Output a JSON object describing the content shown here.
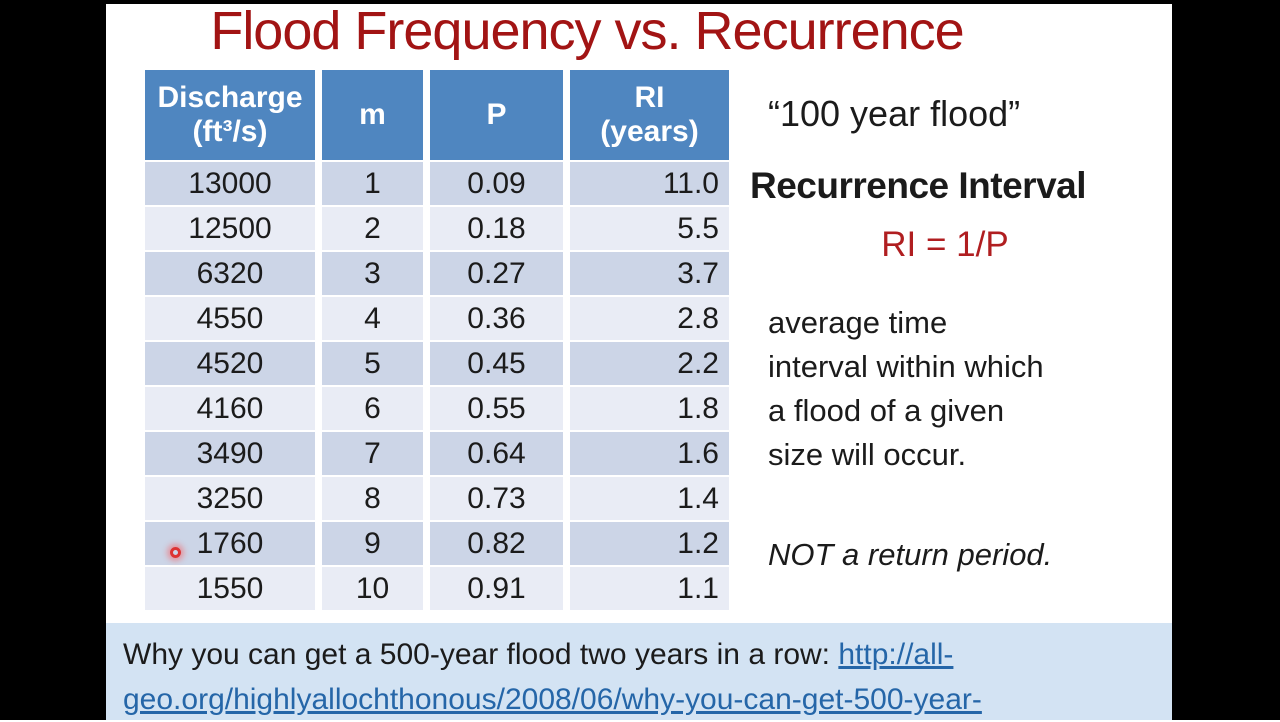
{
  "colors": {
    "bar_black": "#000000",
    "title_red": "#A21414",
    "formula_red": "#B01E20",
    "header_blue": "#4F86C0",
    "row_odd": "#CCD5E7",
    "row_even": "#E9ECF5",
    "footer_bg": "#D3E3F3",
    "link_blue": "#2566A8"
  },
  "slide": {
    "title": "Flood Frequency vs. Recurrence"
  },
  "table": {
    "headers": [
      {
        "text": "Discharge\n(ft³/s)",
        "size": "small"
      },
      {
        "text": "m",
        "size": "large"
      },
      {
        "text": "P",
        "size": "large"
      },
      {
        "text": "RI\n(years)",
        "size": "small"
      }
    ],
    "rows": [
      [
        "13000",
        "1",
        "0.09",
        "11.0"
      ],
      [
        "12500",
        "2",
        "0.18",
        "5.5"
      ],
      [
        "6320",
        "3",
        "0.27",
        "3.7"
      ],
      [
        "4550",
        "4",
        "0.36",
        "2.8"
      ],
      [
        "4520",
        "5",
        "0.45",
        "2.2"
      ],
      [
        "4160",
        "6",
        "0.55",
        "1.8"
      ],
      [
        "3490",
        "7",
        "0.64",
        "1.6"
      ],
      [
        "3250",
        "8",
        "0.73",
        "1.4"
      ],
      [
        "1760",
        "9",
        "0.82",
        "1.2"
      ],
      [
        "1550",
        "10",
        "0.91",
        "1.1"
      ]
    ]
  },
  "notes": {
    "quote": "“100 year flood”",
    "heading": "Recurrence Interval",
    "formula": "RI = 1/P",
    "description": "average time\ninterval within which\na flood of a given\nsize will occur.",
    "emphasis": "NOT a return period."
  },
  "footer": {
    "prefix": "Why you can get a 500-year flood two years in a row: ",
    "link_line1": "http://all-",
    "link_line2": "geo.org/highlyallochthonous/2008/06/why-you-can-get-500-year-"
  }
}
